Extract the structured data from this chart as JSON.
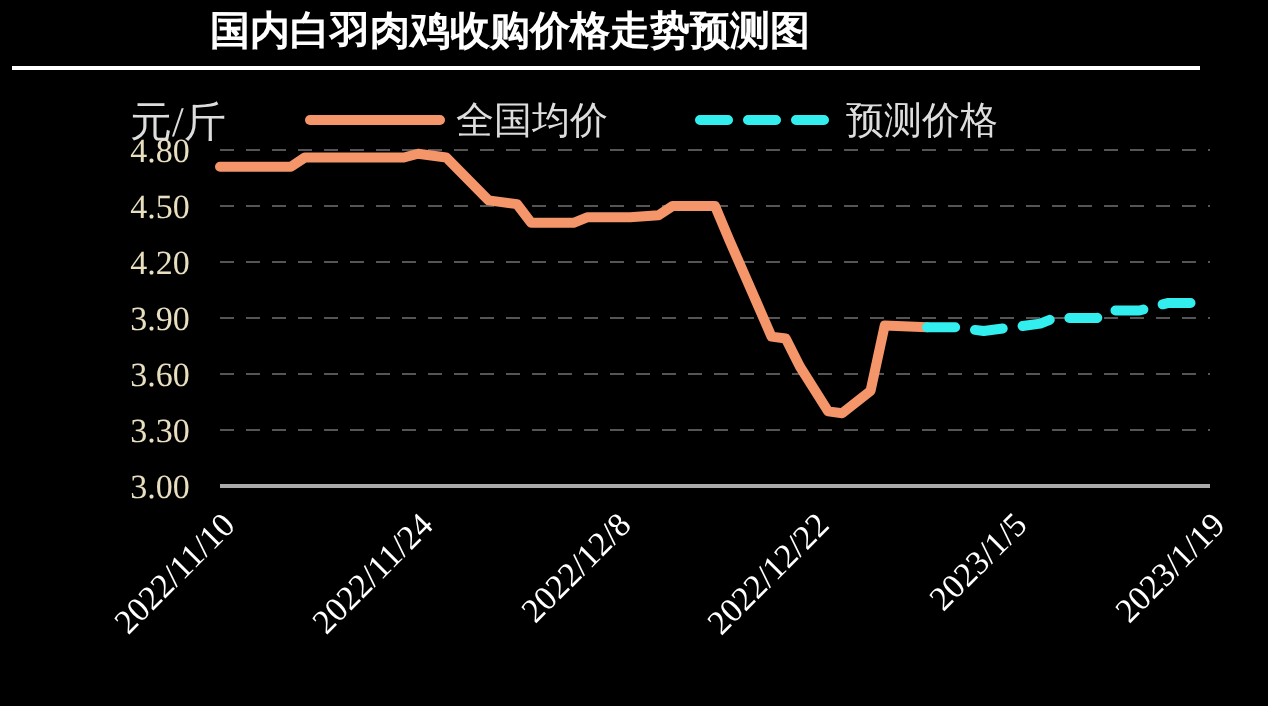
{
  "chart_data": {
    "type": "line",
    "title": "国内白羽肉鸡收购价格走势预测图",
    "ylabel": "元/斤",
    "ylim": [
      3.0,
      4.8
    ],
    "yticks": [
      {
        "value": 3.0,
        "label": "3.00"
      },
      {
        "value": 3.3,
        "label": "3.30"
      },
      {
        "value": 3.6,
        "label": "3.60"
      },
      {
        "value": 3.9,
        "label": "3.90"
      },
      {
        "value": 4.2,
        "label": "4.20"
      },
      {
        "value": 4.5,
        "label": "4.50"
      },
      {
        "value": 4.8,
        "label": "4.80"
      }
    ],
    "xlim": [
      "2022-11-10",
      "2023-01-19"
    ],
    "xticks": [
      {
        "value": "2022-11-10",
        "label": "2022/11/10"
      },
      {
        "value": "2022-11-24",
        "label": "2022/11/24"
      },
      {
        "value": "2022-12-08",
        "label": "2022/12/8"
      },
      {
        "value": "2022-12-22",
        "label": "2022/12/22"
      },
      {
        "value": "2023-01-05",
        "label": "2023/1/5"
      },
      {
        "value": "2023-01-19",
        "label": "2023/1/19"
      }
    ],
    "grid": "y",
    "legend": "top",
    "marker": "none",
    "series": [
      {
        "name": "全国均价",
        "color": "#f4956a",
        "line_style": "solid",
        "x": [
          "2022-11-10",
          "2022-11-15",
          "2022-11-16",
          "2022-11-23",
          "2022-11-24",
          "2022-11-26",
          "2022-11-29",
          "2022-12-01",
          "2022-12-02",
          "2022-12-05",
          "2022-12-06",
          "2022-12-09",
          "2022-12-11",
          "2022-12-12",
          "2022-12-15",
          "2022-12-16",
          "2022-12-19",
          "2022-12-20",
          "2022-12-21",
          "2022-12-23",
          "2022-12-24",
          "2022-12-26",
          "2022-12-27",
          "2022-12-30"
        ],
        "values": [
          4.71,
          4.71,
          4.76,
          4.76,
          4.78,
          4.76,
          4.53,
          4.51,
          4.41,
          4.41,
          4.44,
          4.44,
          4.45,
          4.5,
          4.5,
          4.32,
          3.8,
          3.79,
          3.64,
          3.4,
          3.39,
          3.51,
          3.86,
          3.85
        ]
      },
      {
        "name": "预测价格",
        "color": "#33eeee",
        "line_style": "dashed",
        "x": [
          "2022-12-30",
          "2023-01-01",
          "2023-01-03",
          "2023-01-05",
          "2023-01-07",
          "2023-01-08",
          "2023-01-11",
          "2023-01-12",
          "2023-01-14",
          "2023-01-16",
          "2023-01-19"
        ],
        "values": [
          3.85,
          3.85,
          3.83,
          3.85,
          3.87,
          3.9,
          3.9,
          3.94,
          3.94,
          3.98,
          3.98
        ]
      }
    ]
  }
}
